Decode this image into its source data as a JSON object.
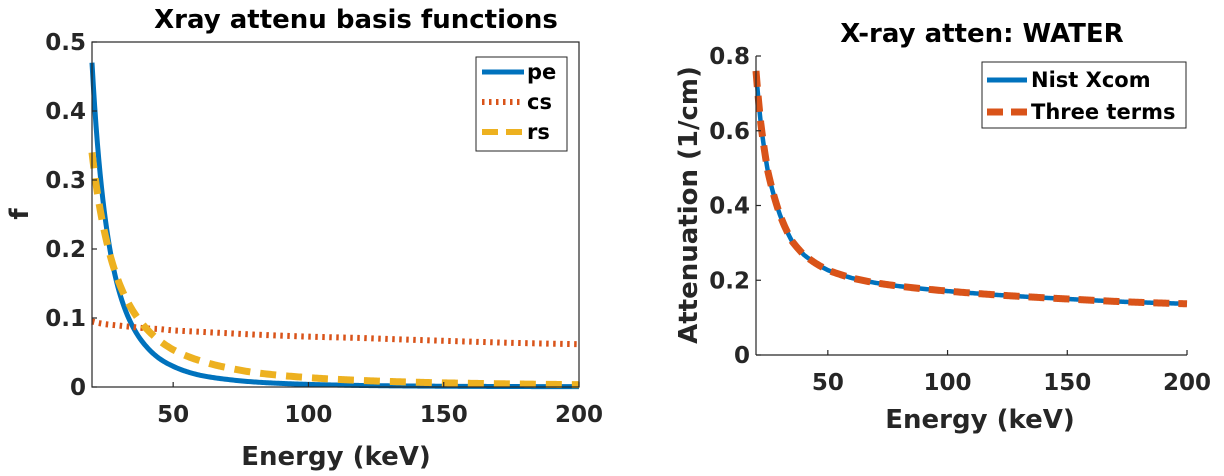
{
  "chart_data": [
    {
      "type": "line",
      "title": "Xray attenu basis functions",
      "xlabel": "Energy (keV)",
      "ylabel": "f",
      "xlim": [
        20,
        200
      ],
      "ylim": [
        0,
        0.5
      ],
      "xticks": [
        50,
        100,
        150,
        200
      ],
      "xtick_labels": [
        "50",
        "100",
        "150",
        "200"
      ],
      "yticks": [
        0,
        0.1,
        0.2,
        0.3,
        0.4,
        0.5
      ],
      "ytick_labels": [
        "0",
        "0.1",
        "0.2",
        "0.3",
        "0.4",
        "0.5"
      ],
      "box": true,
      "grid": false,
      "legend_position": "top-right",
      "x": [
        20,
        22,
        25,
        30,
        35,
        40,
        45,
        50,
        60,
        70,
        80,
        100,
        120,
        150,
        175,
        200
      ],
      "series": [
        {
          "name": "pe",
          "color": "#0072BD",
          "style": "solid",
          "values": [
            0.47,
            0.353,
            0.241,
            0.139,
            0.088,
            0.059,
            0.041,
            0.03,
            0.017,
            0.011,
            0.0073,
            0.0038,
            0.0022,
            0.0011,
            0.0007,
            0.0005
          ]
        },
        {
          "name": "cs",
          "color": "#D95319",
          "style": "dotted",
          "values": [
            0.095,
            0.093,
            0.091,
            0.089,
            0.087,
            0.085,
            0.084,
            0.082,
            0.08,
            0.078,
            0.076,
            0.073,
            0.071,
            0.067,
            0.064,
            0.062
          ]
        },
        {
          "name": "rs",
          "color": "#EDB120",
          "style": "dashed",
          "values": [
            0.34,
            0.281,
            0.218,
            0.151,
            0.111,
            0.085,
            0.067,
            0.054,
            0.038,
            0.028,
            0.021,
            0.0136,
            0.0094,
            0.006,
            0.0045,
            0.0034
          ]
        }
      ]
    },
    {
      "type": "line",
      "title": "X-ray atten: WATER",
      "xlabel": "Energy (keV)",
      "ylabel": "Attenuation (1/cm)",
      "xlim": [
        20,
        200
      ],
      "ylim": [
        0,
        0.8
      ],
      "xticks": [
        50,
        100,
        150,
        200
      ],
      "xtick_labels": [
        "50",
        "100",
        "150",
        "200"
      ],
      "yticks": [
        0,
        0.2,
        0.4,
        0.6,
        0.8
      ],
      "ytick_labels": [
        "0",
        "0.2",
        "0.4",
        "0.6",
        "0.8"
      ],
      "box": false,
      "grid": false,
      "legend_position": "top-right",
      "x": [
        20,
        22,
        25,
        30,
        35,
        40,
        45,
        50,
        60,
        70,
        80,
        100,
        120,
        150,
        175,
        200
      ],
      "series": [
        {
          "name": "Nist Xcom",
          "color": "#0072BD",
          "style": "solid",
          "values": [
            0.76,
            0.62,
            0.49,
            0.375,
            0.305,
            0.268,
            0.245,
            0.227,
            0.206,
            0.193,
            0.184,
            0.171,
            0.161,
            0.15,
            0.142,
            0.137
          ]
        },
        {
          "name": "Three terms",
          "color": "#D95319",
          "style": "dashed",
          "values": [
            0.76,
            0.62,
            0.49,
            0.375,
            0.305,
            0.268,
            0.245,
            0.227,
            0.206,
            0.193,
            0.184,
            0.171,
            0.161,
            0.15,
            0.142,
            0.137
          ]
        }
      ]
    }
  ]
}
